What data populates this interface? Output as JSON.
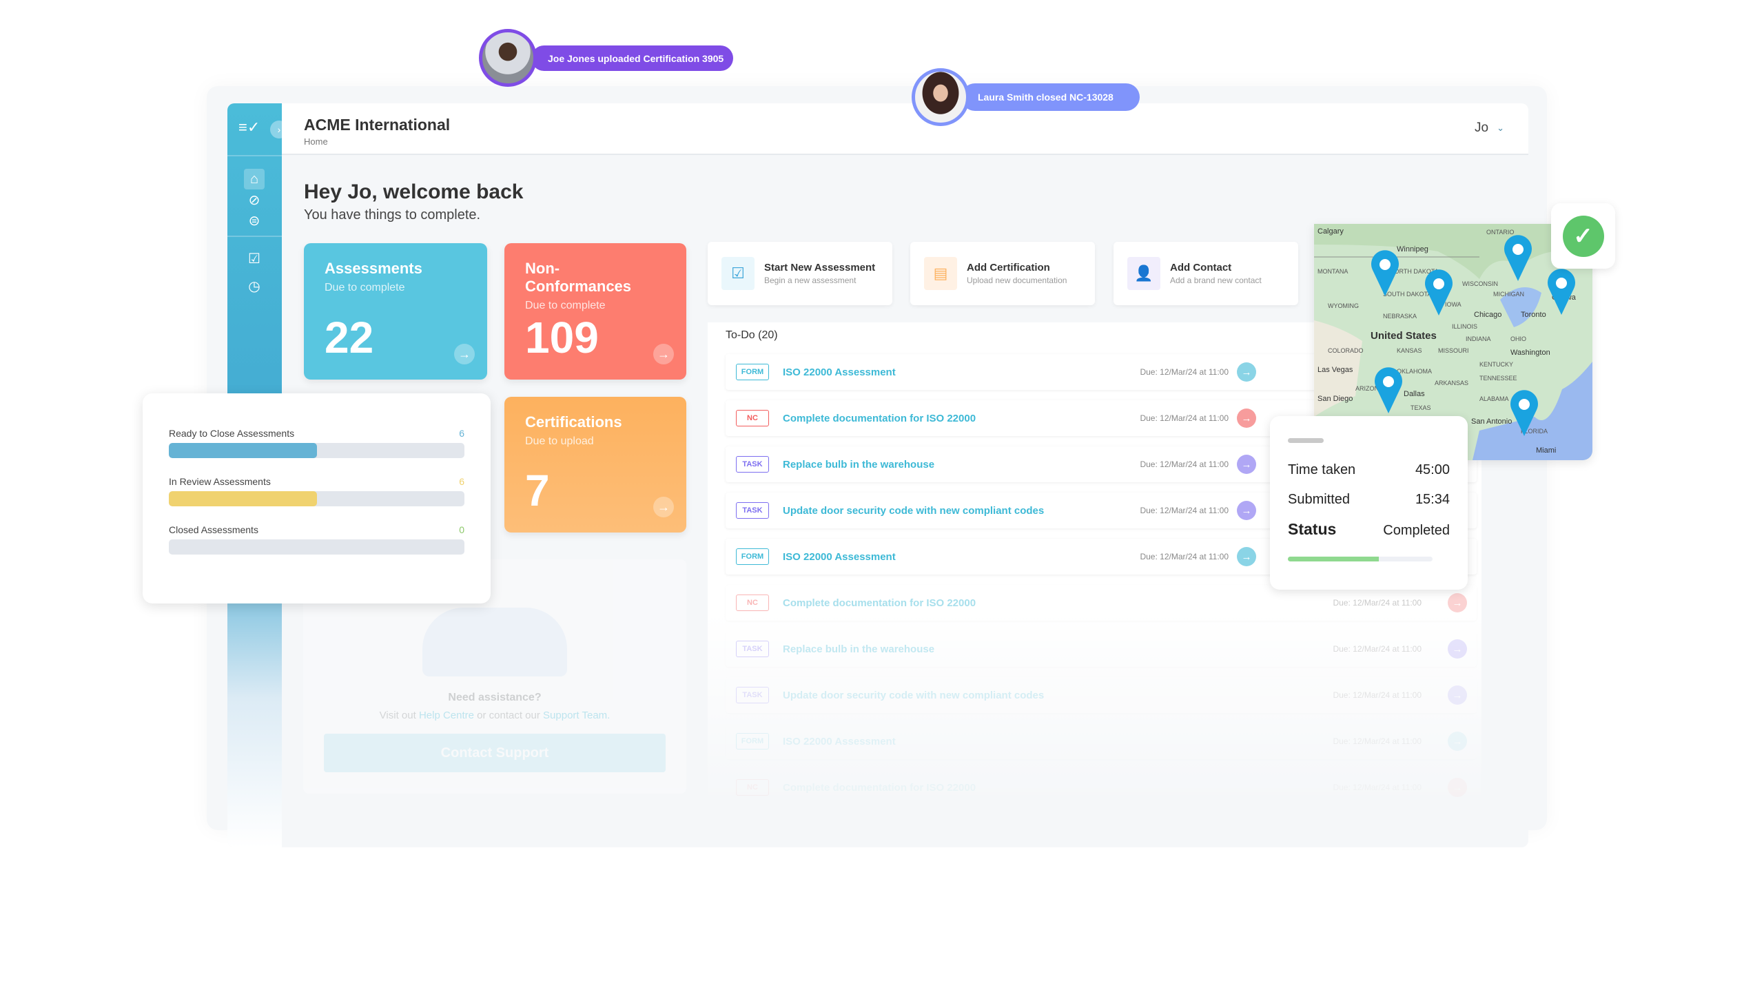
{
  "notifications": [
    {
      "text": "Joe Jones uploaded Certification 3905",
      "color": "#7f4ce6"
    },
    {
      "text": "Laura Smith closed NC-13028",
      "color": "#8094fb"
    }
  ],
  "header": {
    "org": "ACME International",
    "breadcrumb": "Home",
    "user": "Jo"
  },
  "welcome": {
    "title": "Hey Jo, welcome back",
    "subtitle": "You have things to complete."
  },
  "cards": [
    {
      "title": "Assessments",
      "sub": "Due to complete",
      "value": "22",
      "color": "#59c6e0"
    },
    {
      "title": "Non-Conformances",
      "sub": "Due to complete",
      "value": "109",
      "color": "#fd7d6f"
    },
    {
      "title": "Certifications",
      "sub": "Due to upload",
      "value": "7",
      "color": "#fdb15e"
    }
  ],
  "progress": [
    {
      "label": "Ready to Close Assessments",
      "value": "6",
      "fraction": 0.5,
      "color": "#65b3d5"
    },
    {
      "label": "In Review Assessments",
      "value": "6",
      "fraction": 0.5,
      "color": "#f0d26f"
    },
    {
      "label": "Closed Assessments",
      "value": "0",
      "fraction": 0,
      "color": "#8cc96a"
    }
  ],
  "support": {
    "title": "Need assistance?",
    "text_a": "Visit out ",
    "link1": "Help Centre",
    "text_b": " or contact our ",
    "link2": "Support Team.",
    "button": "Contact Support"
  },
  "quick_actions": [
    {
      "title": "Start New Assessment",
      "sub": "Begin a new assessment",
      "icon": "checkbox-icon"
    },
    {
      "title": "Add Certification",
      "sub": "Upload new documentation",
      "icon": "document-icon"
    },
    {
      "title": "Add Contact",
      "sub": "Add a brand new contact",
      "icon": "add-user-icon"
    }
  ],
  "todo": {
    "title": "To-Do (20)",
    "items": [
      {
        "tag": "FORM",
        "title": "ISO 22000 Assessment",
        "due": "Due: 12/Mar/24 at 11:00"
      },
      {
        "tag": "NC",
        "title": "Complete documentation for ISO 22000",
        "due": "Due: 12/Mar/24 at 11:00"
      },
      {
        "tag": "TASK",
        "title": "Replace bulb in the warehouse",
        "due": "Due: 12/Mar/24 at 11:00"
      },
      {
        "tag": "TASK",
        "title": "Update door security code with new compliant codes",
        "due": "Due: 12/Mar/24 at 11:00"
      },
      {
        "tag": "FORM",
        "title": "ISO 22000 Assessment",
        "due": "Due: 12/Mar/24 at 11:00"
      },
      {
        "tag": "NC",
        "title": "Complete documentation for ISO 22000",
        "due": "Due: 12/Mar/24 at 11:00"
      },
      {
        "tag": "TASK",
        "title": "Replace bulb in the warehouse",
        "due": "Due: 12/Mar/24 at 11:00"
      },
      {
        "tag": "TASK",
        "title": "Update door security code with new compliant codes",
        "due": "Due: 12/Mar/24 at 11:00"
      },
      {
        "tag": "FORM",
        "title": "ISO 22000 Assessment",
        "due": "Due: 12/Mar/24 at 11:00"
      },
      {
        "tag": "NC",
        "title": "Complete documentation for ISO 22000",
        "due": "Due: 12/Mar/24 at 11:00"
      }
    ]
  },
  "tag_colors": {
    "FORM": "#3db9d6",
    "NC": "#f25c5c",
    "TASK": "#7d6ef0"
  },
  "map": {
    "country": "United States",
    "cities": [
      "Calgary",
      "Winnipeg",
      "Chicago",
      "Toronto",
      "Ottawa",
      "Washington",
      "Las Vegas",
      "San Diego",
      "Dallas",
      "San Antonio",
      "Miami"
    ],
    "regions": [
      "MONTANA",
      "NORTH DAKOTA",
      "SOUTH DAKOTA",
      "WYOMING",
      "NEBRASKA",
      "IOWA",
      "WISCONSIN",
      "MICHIGAN",
      "COLORADO",
      "KANSAS",
      "MISSOURI",
      "OKLAHOMA",
      "TEXAS",
      "ARIZONA",
      "ILLINOIS",
      "INDIANA",
      "OHIO",
      "KENTUCKY",
      "TENNESSEE",
      "ARKANSAS",
      "ALABAMA",
      "FLORIDA",
      "ONTARIO"
    ]
  },
  "stats": {
    "rows": [
      {
        "label": "Time taken",
        "value": "45:00"
      },
      {
        "label": "Submitted",
        "value": "15:34"
      }
    ],
    "status_label": "Status",
    "status_value": "Completed",
    "progress": 0.63
  }
}
